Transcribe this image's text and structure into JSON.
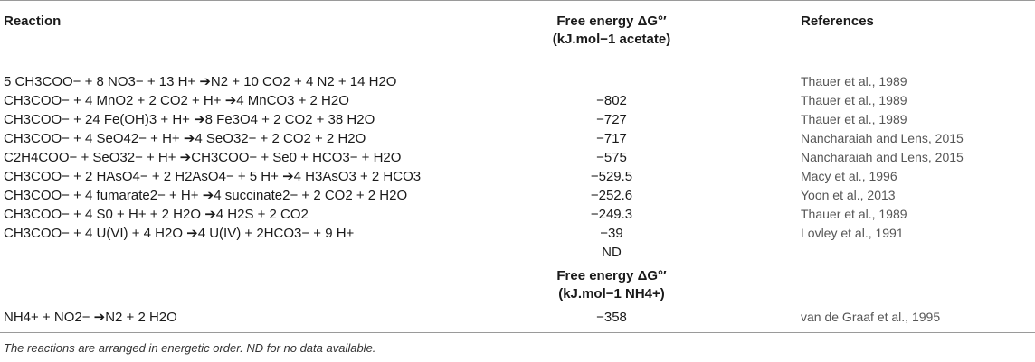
{
  "headers": {
    "reaction": "Reaction",
    "energy_acetate_1": "Free energy ΔG°′",
    "energy_acetate_2": "(kJ.mol−1 acetate)",
    "references": "References",
    "energy_nh4_1": "Free energy ΔG°′",
    "energy_nh4_2": "(kJ.mol−1 NH4+)"
  },
  "rows": [
    {
      "reaction": "5 CH3COO− + 8 NO3− + 13 H+ ➔N2 + 10 CO2 + 4 N2 + 14 H2O",
      "energy": "",
      "reference": "Thauer et al., 1989"
    },
    {
      "reaction": "CH3COO− + 4 MnO2 + 2 CO2 + H+ ➔4 MnCO3 + 2 H2O",
      "energy": "−802",
      "reference": "Thauer et al., 1989"
    },
    {
      "reaction": "CH3COO− + 24 Fe(OH)3 + H+ ➔8 Fe3O4 + 2 CO2 + 38 H2O",
      "energy": "−727",
      "reference": "Thauer et al., 1989"
    },
    {
      "reaction": "CH3COO− + 4 SeO42− + H+ ➔4 SeO32− + 2 CO2 + 2 H2O",
      "energy": "−717",
      "reference": "Nancharaiah and Lens, 2015"
    },
    {
      "reaction": "C2H4COO− + SeO32− + H+ ➔CH3COO− + Se0 + HCO3− + H2O",
      "energy": "−575",
      "reference": "Nancharaiah and Lens, 2015"
    },
    {
      "reaction": "CH3COO− + 2 HAsO4− + 2 H2AsO4− + 5 H+ ➔4 H3AsO3 + 2 HCO3",
      "energy": "−529.5",
      "reference": "Macy et al., 1996"
    },
    {
      "reaction": "CH3COO− + 4 fumarate2− + H+ ➔4 succinate2− + 2 CO2 + 2 H2O",
      "energy": "−252.6",
      "reference": "Yoon et al., 2013"
    },
    {
      "reaction": "CH3COO− + 4 S0 + H+ + 2 H2O ➔4 H2S + 2 CO2",
      "energy": "−249.3",
      "reference": "Thauer et al., 1989"
    },
    {
      "reaction": "CH3COO− + 4 U(VI) + 4 H2O ➔4 U(IV) + 2HCO3− + 9 H+",
      "energy": "−39",
      "reference": "Lovley et al., 1991"
    },
    {
      "reaction": "",
      "energy": "ND",
      "reference": ""
    }
  ],
  "nh4_row": {
    "reaction": "NH4+ + NO2− ➔N2 + 2 H2O",
    "energy": "−358",
    "reference": "van de Graaf et al., 1995"
  },
  "footnote": "The reactions are arranged in energetic order. ND for no data available."
}
